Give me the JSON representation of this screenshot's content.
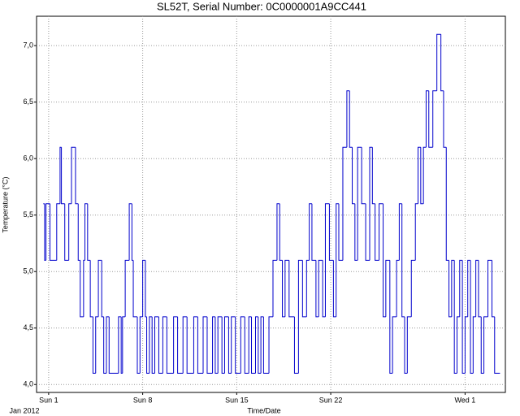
{
  "chart_data": {
    "type": "line",
    "step": true,
    "title": "SL52T,  Serial Number: 0C0000001A9CC441",
    "x_label": "Time/Date",
    "x_sublabel": "Jan 2012",
    "y_label": "Temperature (°C)",
    "xlim": [
      -0.9,
      34
    ],
    "ylim": [
      3.93,
      7.26
    ],
    "xticks": [
      {
        "value": 0,
        "label": "Sun 1"
      },
      {
        "value": 7,
        "label": "Sun 8"
      },
      {
        "value": 14,
        "label": "Sun 15"
      },
      {
        "value": 21,
        "label": "Sun 22"
      },
      {
        "value": 31,
        "label": "Wed 1"
      }
    ],
    "yticks": [
      {
        "value": 4,
        "label": "4,0"
      },
      {
        "value": 4.5,
        "label": "4,5"
      },
      {
        "value": 5,
        "label": "5,0"
      },
      {
        "value": 5.5,
        "label": "5,5"
      },
      {
        "value": 6,
        "label": "6,0"
      },
      {
        "value": 6.5,
        "label": "6,5"
      },
      {
        "value": 7,
        "label": "7,0"
      }
    ],
    "grid": true,
    "color": "#0000cc",
    "x": [
      -0.4,
      -0.3,
      -0.2,
      0.1,
      0.6,
      0.85,
      0.95,
      1.2,
      1.5,
      1.7,
      2.0,
      2.2,
      2.35,
      2.6,
      2.7,
      2.9,
      3.1,
      3.3,
      3.5,
      3.7,
      3.95,
      4.1,
      4.3,
      4.5,
      5.2,
      5.4,
      5.5,
      5.7,
      6.0,
      6.2,
      6.3,
      6.6,
      6.8,
      7.0,
      7.2,
      7.3,
      7.5,
      7.7,
      7.9,
      8.2,
      8.5,
      8.8,
      9.3,
      9.6,
      10.0,
      10.3,
      10.8,
      11.1,
      11.5,
      11.8,
      12.2,
      12.4,
      12.6,
      12.9,
      13.1,
      13.4,
      13.6,
      13.9,
      14.3,
      14.6,
      14.9,
      15.1,
      15.4,
      15.6,
      15.8,
      16.0,
      16.4,
      16.7,
      17.0,
      17.2,
      17.4,
      17.6,
      17.9,
      18.3,
      18.6,
      18.9,
      19.2,
      19.4,
      19.6,
      19.9,
      20.1,
      20.4,
      20.6,
      20.9,
      21.2,
      21.4,
      21.6,
      21.9,
      22.2,
      22.4,
      22.6,
      22.8,
      23.0,
      23.3,
      23.6,
      23.9,
      24.1,
      24.3,
      24.6,
      24.9,
      25.1,
      25.4,
      25.6,
      25.9,
      26.1,
      26.3,
      26.5,
      26.7,
      27.0,
      27.3,
      27.5,
      27.7,
      27.9,
      28.1,
      28.3,
      28.6,
      28.9,
      29.2,
      29.4,
      29.6,
      29.8,
      30.0,
      30.2,
      30.4,
      30.6,
      30.8,
      31.0,
      31.2,
      31.4,
      31.6,
      31.8,
      32.0,
      32.2,
      32.4,
      32.7,
      33.0,
      33.2,
      33.6
    ],
    "values": [
      5.6,
      5.1,
      5.6,
      5.1,
      5.6,
      6.1,
      5.6,
      5.1,
      5.6,
      6.1,
      5.6,
      5.1,
      4.6,
      5.1,
      5.6,
      5.1,
      4.6,
      4.1,
      4.6,
      5.1,
      4.6,
      4.1,
      4.6,
      4.1,
      4.6,
      4.1,
      4.6,
      5.1,
      5.6,
      5.1,
      4.6,
      4.1,
      4.6,
      5.1,
      4.6,
      4.1,
      4.6,
      4.1,
      4.6,
      4.1,
      4.6,
      4.1,
      4.6,
      4.1,
      4.6,
      4.1,
      4.6,
      4.1,
      4.6,
      4.1,
      4.6,
      4.1,
      4.6,
      4.1,
      4.6,
      4.1,
      4.6,
      4.1,
      4.6,
      4.1,
      4.6,
      4.1,
      4.6,
      4.1,
      4.6,
      4.1,
      4.6,
      5.1,
      5.6,
      5.1,
      4.6,
      5.1,
      4.6,
      4.1,
      5.1,
      4.6,
      5.1,
      5.6,
      5.1,
      4.6,
      5.1,
      4.6,
      5.6,
      5.1,
      4.6,
      5.6,
      5.1,
      6.1,
      6.6,
      6.1,
      5.6,
      5.1,
      6.1,
      5.6,
      5.1,
      6.1,
      5.6,
      5.1,
      5.6,
      4.6,
      5.1,
      4.1,
      4.6,
      5.1,
      5.6,
      4.6,
      4.1,
      4.6,
      5.1,
      5.6,
      6.1,
      5.6,
      6.1,
      6.6,
      6.1,
      6.6,
      7.1,
      6.6,
      6.1,
      5.1,
      4.6,
      5.1,
      4.1,
      4.6,
      5.1,
      4.1,
      4.6,
      5.1,
      4.1,
      4.6,
      5.1,
      4.6,
      4.1,
      4.6,
      5.1,
      4.6,
      4.1,
      4.1
    ]
  }
}
